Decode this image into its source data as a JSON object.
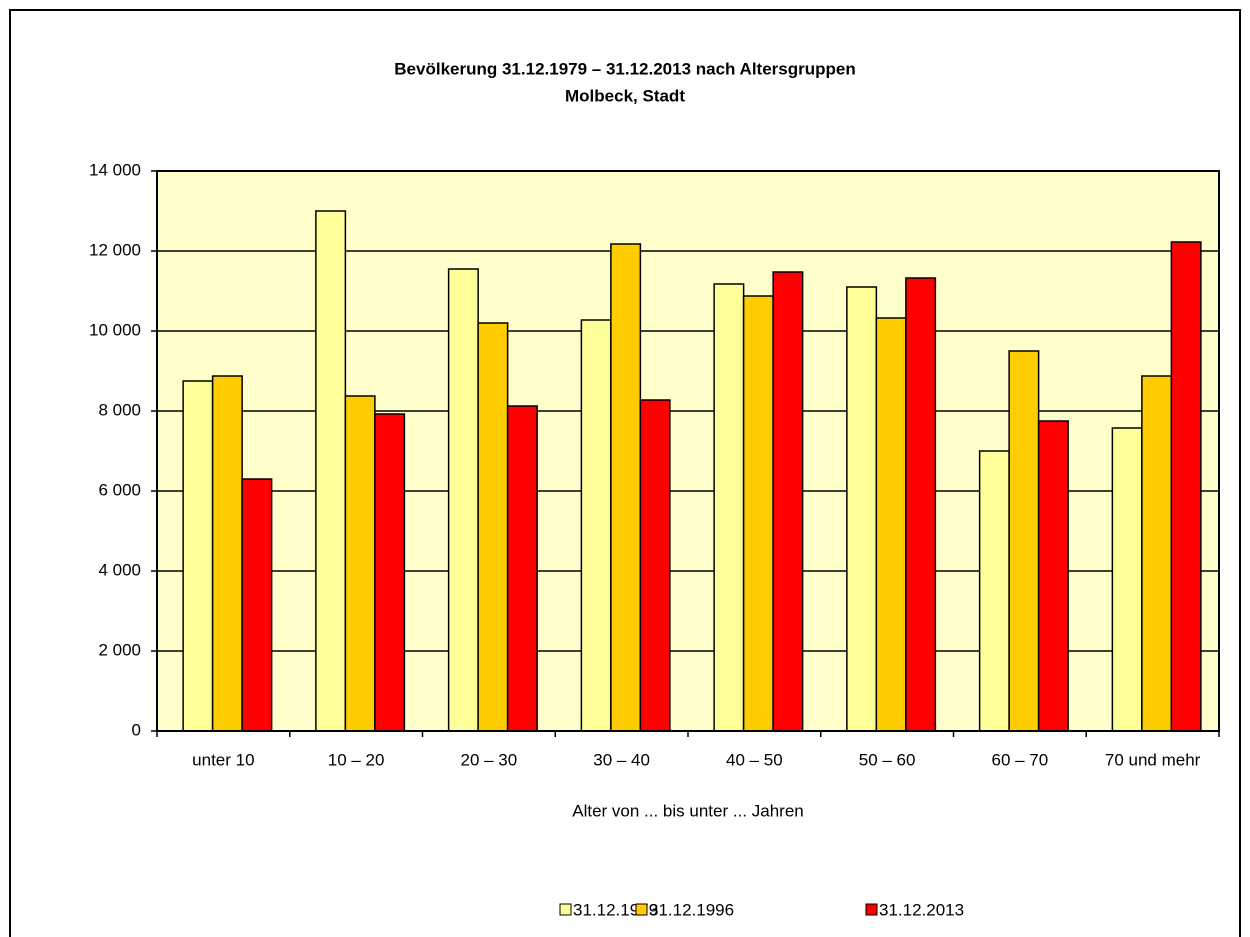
{
  "chart_data": {
    "type": "bar",
    "title": "Bevölkerung 31.12.1979 – 31.12.2013 nach Altersgruppen",
    "subtitle": "Molbeck, Stadt",
    "x_label": "Alter von ... bis unter ... Jahren",
    "categories": [
      "unter 10",
      "10 – 20",
      "20 – 30",
      "30 – 40",
      "40 – 50",
      "50 – 60",
      "60 – 70",
      "70 und mehr"
    ],
    "series": [
      {
        "name": "31.12.1979",
        "color": "#ffff99",
        "values": [
          8750,
          13000,
          11550,
          10275,
          11175,
          11100,
          7000,
          7575
        ]
      },
      {
        "name": "31.12.1996",
        "color": "#ffcc00",
        "values": [
          8875,
          8375,
          10200,
          12175,
          10875,
          10325,
          9500,
          8875
        ]
      },
      {
        "name": "31.12.2013",
        "color": "#ff0000",
        "values": [
          6300,
          7925,
          8125,
          8275,
          11475,
          11325,
          7750,
          12225
        ]
      }
    ],
    "ylim": [
      0,
      14000
    ],
    "yticks": [
      0,
      {
        "value": 2000,
        "label": "2 000"
      },
      {
        "value": 4000,
        "label": "4 000"
      },
      {
        "value": 6000,
        "label": "6 000"
      },
      {
        "value": 8000,
        "label": "8 000"
      },
      {
        "value": 10000,
        "label": "10 000"
      },
      {
        "value": 12000,
        "label": "12 000"
      },
      {
        "value": 14000,
        "label": "14 000"
      }
    ],
    "grid": true,
    "plot_background": "#ffffcc",
    "legend": "bottom"
  }
}
